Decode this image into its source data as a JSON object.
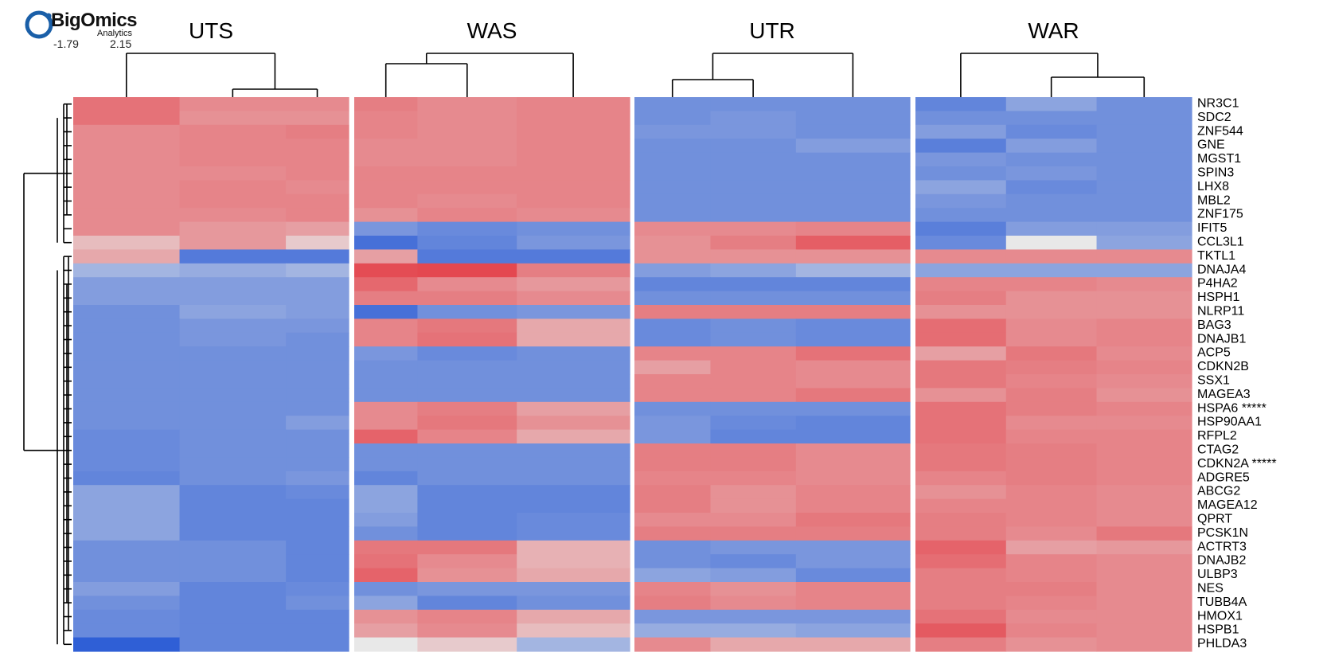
{
  "logo": {
    "brand": "BigOmics",
    "sub": "Analytics",
    "scale_min_label": "-1.79",
    "scale_max_label": "2.15",
    "color": "#1a5fa8"
  },
  "chart_data": {
    "type": "heatmap",
    "title": "",
    "xlabel": "",
    "ylabel": "",
    "color_scale": {
      "min": -1.79,
      "max": 2.15,
      "low": "#2f5fd6",
      "mid": "#e8e8e8",
      "high": "#e4464e"
    },
    "groups": [
      {
        "name": "UTS",
        "columns": 3,
        "width_weights": [
          1.1,
          1.1,
          0.65
        ]
      },
      {
        "name": "WAS",
        "columns": 3,
        "width_weights": [
          0.7,
          1.1,
          1.25
        ]
      },
      {
        "name": "UTR",
        "columns": 3,
        "width_weights": [
          0.8,
          0.9,
          1.2
        ]
      },
      {
        "name": "WAR",
        "columns": 3,
        "width_weights": [
          1.0,
          1.0,
          1.05
        ]
      }
    ],
    "genes": [
      "NR3C1",
      "SDC2",
      "ZNF544",
      "GNE",
      "MGST1",
      "SPIN3",
      "LHX8",
      "MBL2",
      "ZNF175",
      "IFIT5",
      "CCL3L1",
      "TKTL1",
      "DNAJA4",
      "P4HA2",
      "HSPH1",
      "NLRP11",
      "BAG3",
      "DNAJB1",
      "ACP5",
      "CDKN2B",
      "SSX1",
      "MAGEA3",
      "HSPA6 *****",
      "HSP90AA1",
      "RFPL2",
      "CTAG2",
      "CDKN2A *****",
      "ADGRE5",
      "ABCG2",
      "MAGEA12",
      "QPRT",
      "PCSK1N",
      "ACTRT3",
      "DNAJB2",
      "ULBP3",
      "NES",
      "TUBB4A",
      "HMOX1",
      "HSPB1",
      "PHLDA3"
    ],
    "values": [
      [
        1.2,
        0.8,
        0.8,
        1.0,
        0.8,
        0.9,
        -0.8,
        -0.8,
        -0.8,
        -1.0,
        -0.5,
        -0.8
      ],
      [
        1.2,
        0.7,
        0.7,
        0.9,
        0.8,
        0.9,
        -0.8,
        -0.7,
        -0.8,
        -0.8,
        -0.8,
        -0.8
      ],
      [
        0.8,
        0.9,
        1.0,
        0.9,
        0.8,
        0.9,
        -0.7,
        -0.7,
        -0.8,
        -0.6,
        -0.9,
        -0.8
      ],
      [
        0.8,
        0.9,
        0.9,
        0.8,
        0.8,
        0.9,
        -0.8,
        -0.8,
        -0.6,
        -1.1,
        -0.6,
        -0.8
      ],
      [
        0.8,
        0.9,
        0.9,
        0.8,
        0.8,
        0.9,
        -0.8,
        -0.8,
        -0.8,
        -0.7,
        -0.8,
        -0.8
      ],
      [
        0.8,
        0.8,
        0.9,
        0.9,
        0.9,
        0.9,
        -0.8,
        -0.8,
        -0.8,
        -0.8,
        -0.7,
        -0.8
      ],
      [
        0.8,
        0.9,
        0.8,
        0.9,
        0.9,
        0.9,
        -0.8,
        -0.8,
        -0.8,
        -0.5,
        -0.9,
        -0.8
      ],
      [
        0.8,
        0.9,
        0.9,
        0.9,
        0.8,
        0.9,
        -0.8,
        -0.8,
        -0.8,
        -0.7,
        -0.8,
        -0.8
      ],
      [
        0.8,
        0.8,
        0.9,
        0.7,
        0.9,
        0.8,
        -0.8,
        -0.8,
        -0.8,
        -0.8,
        -0.8,
        -0.8
      ],
      [
        0.8,
        0.6,
        0.5,
        -0.7,
        -0.9,
        -0.8,
        0.8,
        0.8,
        0.9,
        -1.1,
        -0.6,
        -0.6
      ],
      [
        0.2,
        0.6,
        0.1,
        -1.4,
        -1.0,
        -0.7,
        0.7,
        1.0,
        1.6,
        -0.9,
        0.0,
        -0.5
      ],
      [
        0.4,
        -1.2,
        -1.2,
        0.5,
        -1.2,
        -1.2,
        0.7,
        0.7,
        0.7,
        0.8,
        0.8,
        0.8
      ],
      [
        -0.3,
        -0.4,
        -0.3,
        2.0,
        2.1,
        1.0,
        -0.6,
        -0.5,
        -0.3,
        -0.5,
        -0.5,
        -0.5
      ],
      [
        -0.6,
        -0.6,
        -0.6,
        1.4,
        0.8,
        0.6,
        -1.0,
        -1.0,
        -1.0,
        0.9,
        0.9,
        0.8
      ],
      [
        -0.6,
        -0.6,
        -0.6,
        1.0,
        1.0,
        0.8,
        -0.8,
        -0.8,
        -0.8,
        1.0,
        0.7,
        0.7
      ],
      [
        -0.8,
        -0.5,
        -0.6,
        -1.4,
        -0.8,
        -0.7,
        1.0,
        1.0,
        1.0,
        0.7,
        0.7,
        0.7
      ],
      [
        -0.8,
        -0.7,
        -0.7,
        0.9,
        1.1,
        0.4,
        -0.9,
        -0.8,
        -0.9,
        1.3,
        0.8,
        0.9
      ],
      [
        -0.8,
        -0.7,
        -0.8,
        0.9,
        1.2,
        0.4,
        -0.9,
        -0.8,
        -0.9,
        1.3,
        0.8,
        0.9
      ],
      [
        -0.8,
        -0.8,
        -0.8,
        -0.7,
        -0.9,
        -0.8,
        0.9,
        0.9,
        1.2,
        0.5,
        1.1,
        0.8
      ],
      [
        -0.8,
        -0.8,
        -0.8,
        -0.8,
        -0.8,
        -0.8,
        0.5,
        0.9,
        0.8,
        1.1,
        1.0,
        0.9
      ],
      [
        -0.8,
        -0.8,
        -0.8,
        -0.8,
        -0.8,
        -0.8,
        0.9,
        0.9,
        0.8,
        1.1,
        0.9,
        0.8
      ],
      [
        -0.8,
        -0.8,
        -0.8,
        -0.8,
        -0.8,
        -0.8,
        0.9,
        0.9,
        1.1,
        0.7,
        1.0,
        0.7
      ],
      [
        -0.8,
        -0.8,
        -0.8,
        0.8,
        1.0,
        0.5,
        -0.8,
        -0.8,
        -0.8,
        1.2,
        1.0,
        0.9
      ],
      [
        -0.8,
        -0.8,
        -0.6,
        0.8,
        1.1,
        0.7,
        -0.7,
        -0.9,
        -1.0,
        1.2,
        0.8,
        0.8
      ],
      [
        -0.9,
        -0.8,
        -0.8,
        1.5,
        0.9,
        0.4,
        -0.7,
        -1.0,
        -1.0,
        1.2,
        0.9,
        0.9
      ],
      [
        -0.9,
        -0.8,
        -0.8,
        -0.8,
        -0.8,
        -0.8,
        1.0,
        1.0,
        0.8,
        1.1,
        1.0,
        0.9
      ],
      [
        -0.9,
        -0.8,
        -0.8,
        -0.8,
        -0.8,
        -0.8,
        1.0,
        1.0,
        0.8,
        1.1,
        1.0,
        0.9
      ],
      [
        -1.0,
        -0.8,
        -0.7,
        -1.0,
        -0.8,
        -0.8,
        0.9,
        0.9,
        0.8,
        0.9,
        1.0,
        0.9
      ],
      [
        -0.5,
        -1.0,
        -0.9,
        -0.5,
        -1.0,
        -1.0,
        1.0,
        0.7,
        0.9,
        0.7,
        0.9,
        0.8
      ],
      [
        -0.5,
        -1.0,
        -1.0,
        -0.5,
        -1.0,
        -1.0,
        1.0,
        0.7,
        0.9,
        0.9,
        0.9,
        0.8
      ],
      [
        -0.5,
        -1.0,
        -1.0,
        -0.6,
        -1.0,
        -0.9,
        0.8,
        0.8,
        1.1,
        1.0,
        0.9,
        0.8
      ],
      [
        -0.5,
        -1.0,
        -1.0,
        -0.8,
        -1.0,
        -0.9,
        1.0,
        1.0,
        1.0,
        1.0,
        0.8,
        1.1
      ],
      [
        -0.8,
        -0.8,
        -1.0,
        1.1,
        1.1,
        0.3,
        -0.8,
        -0.7,
        -0.7,
        1.5,
        0.5,
        0.6
      ],
      [
        -0.8,
        -0.8,
        -1.0,
        1.2,
        0.8,
        0.3,
        -0.8,
        -0.9,
        -0.7,
        1.3,
        0.9,
        0.8
      ],
      [
        -0.8,
        -0.8,
        -1.0,
        1.5,
        0.7,
        0.4,
        -0.5,
        -0.6,
        -0.9,
        1.0,
        0.9,
        0.8
      ],
      [
        -0.6,
        -1.0,
        -0.9,
        -0.8,
        -0.7,
        -0.7,
        0.9,
        0.7,
        0.9,
        1.0,
        1.0,
        0.8
      ],
      [
        -0.8,
        -1.0,
        -0.8,
        -0.5,
        -1.0,
        -0.8,
        1.0,
        0.8,
        0.9,
        1.0,
        0.9,
        0.8
      ],
      [
        -0.9,
        -1.0,
        -1.0,
        0.7,
        0.9,
        0.4,
        -0.7,
        -0.7,
        -0.7,
        1.2,
        0.8,
        0.8
      ],
      [
        -0.9,
        -1.0,
        -1.0,
        0.5,
        0.8,
        0.2,
        -0.4,
        -0.4,
        -0.5,
        1.7,
        0.9,
        0.8
      ],
      [
        -1.79,
        -1.0,
        -1.0,
        0.0,
        0.1,
        -0.3,
        0.8,
        0.4,
        0.4,
        1.0,
        0.7,
        0.8
      ]
    ]
  }
}
